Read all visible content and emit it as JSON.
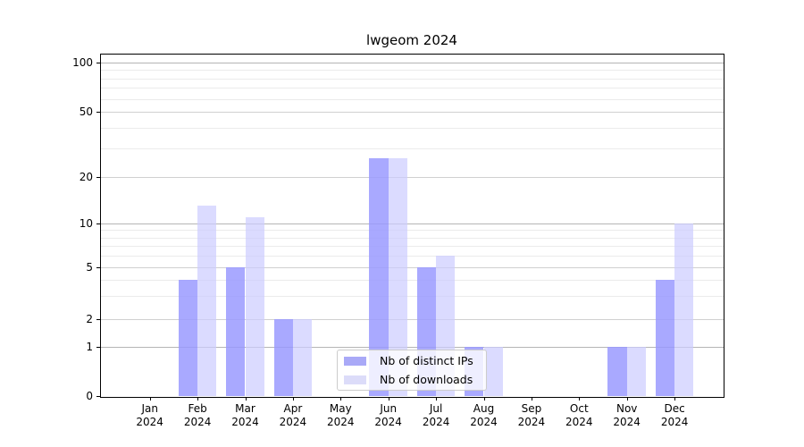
{
  "title": "lwgeom 2024",
  "colors": {
    "distinct_ips_fill": "rgba(153,153,255,0.84)",
    "downloads_fill": "rgba(204,204,255,0.70)",
    "distinct_ips_solid": "#a9a9f7",
    "downloads_solid": "#dcdcf9",
    "grid_decade": "#b5b5b5",
    "grid_major": "#d0d0d0",
    "grid_minor": "#ebebeb",
    "axis": "#000000",
    "legend_border": "#cccccc"
  },
  "legend": {
    "items": [
      {
        "label": "Nb of distinct IPs"
      },
      {
        "label": "Nb of downloads"
      }
    ]
  },
  "chart_data": {
    "type": "bar",
    "title": "lwgeom 2024",
    "categories": [
      "Jan",
      "Feb",
      "Mar",
      "Apr",
      "May",
      "Jun",
      "Jul",
      "Aug",
      "Sep",
      "Oct",
      "Nov",
      "Dec"
    ],
    "x_year_label": "2024",
    "series": [
      {
        "name": "Nb of distinct IPs",
        "values": [
          0,
          4,
          5,
          2,
          0,
          26,
          5,
          1,
          0,
          0,
          1,
          4
        ]
      },
      {
        "name": "Nb of downloads",
        "values": [
          0,
          13,
          11,
          2,
          0,
          26,
          6,
          1,
          0,
          0,
          1,
          10
        ]
      }
    ],
    "yticks": [
      0,
      1,
      2,
      5,
      10,
      20,
      50,
      100
    ],
    "minor_yticks": [
      3,
      4,
      6,
      7,
      8,
      9,
      30,
      40,
      60,
      70,
      80,
      90
    ],
    "decade_yticks": [
      1,
      10,
      100
    ],
    "ylim": [
      0,
      112
    ],
    "yscale": "log-like (linear 0-1, log above)",
    "grid": "on",
    "legend_position": "lower center",
    "xlabel": "",
    "ylabel": ""
  }
}
